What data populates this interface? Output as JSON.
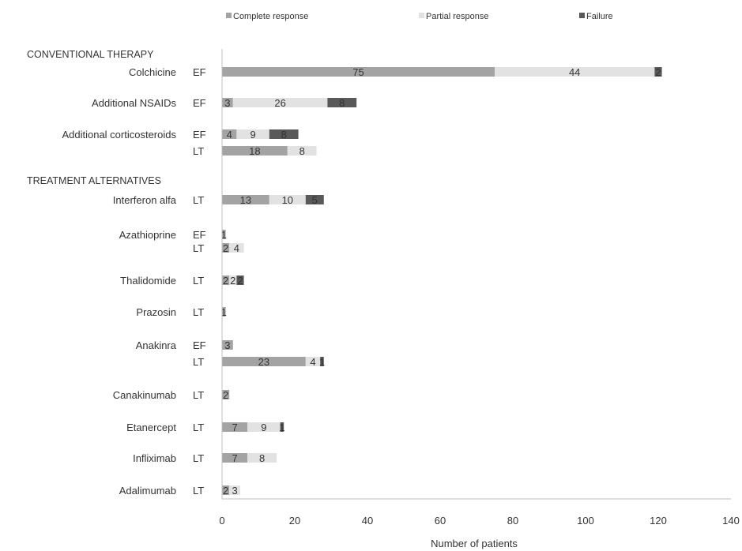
{
  "chart_data": {
    "type": "bar",
    "orientation": "horizontal",
    "stacked": true,
    "xlabel": "Number of patients",
    "xlim": [
      0,
      140
    ],
    "xticks": [
      0,
      20,
      40,
      60,
      80,
      100,
      120,
      140
    ],
    "grid": false,
    "legend_position": "top",
    "series": [
      {
        "name": "Complete response",
        "color": "#a3a3a3"
      },
      {
        "name": "Partial response",
        "color": "#e2e2e2"
      },
      {
        "name": "Failure",
        "color": "#595959"
      }
    ],
    "sections": [
      "CONVENTIONAL THERAPY",
      "TREATMENT ALTERNATIVES"
    ],
    "rows": [
      {
        "section": 0,
        "label": "Colchicine",
        "sub": "EF",
        "values": [
          75,
          44,
          2
        ],
        "value_labels": [
          "75",
          "44",
          "2"
        ]
      },
      {
        "section": 0,
        "label": "Additional NSAIDs",
        "sub": "EF",
        "values": [
          3,
          26,
          8
        ],
        "value_labels": [
          "3",
          "26",
          "8"
        ]
      },
      {
        "section": 0,
        "label": "Additional corticosteroids",
        "sub": "EF",
        "values": [
          4,
          9,
          8
        ],
        "value_labels": [
          "4",
          "9",
          "8"
        ]
      },
      {
        "section": 0,
        "label": "",
        "sub": "LT",
        "values": [
          18,
          8,
          0
        ],
        "value_labels": [
          "18",
          "8",
          ""
        ]
      },
      {
        "section": 1,
        "label": "Interferon alfa",
        "sub": "LT",
        "values": [
          13,
          10,
          5
        ],
        "value_labels": [
          "13",
          "10",
          "5"
        ]
      },
      {
        "section": 1,
        "label": "Azathioprine",
        "sub": "EF",
        "values": [
          1,
          0,
          0
        ],
        "value_labels": [
          "1",
          "",
          ""
        ]
      },
      {
        "section": 1,
        "label": "",
        "sub": "LT",
        "values": [
          2,
          4,
          0
        ],
        "value_labels": [
          "2",
          "4",
          ""
        ]
      },
      {
        "section": 1,
        "label": "Thalidomide",
        "sub": "LT",
        "values": [
          2,
          2,
          2
        ],
        "value_labels": [
          "2",
          "2",
          "2"
        ]
      },
      {
        "section": 1,
        "label": "Prazosin",
        "sub": "LT",
        "values": [
          1,
          0,
          0
        ],
        "value_labels": [
          "1",
          "",
          ""
        ]
      },
      {
        "section": 1,
        "label": "Anakinra",
        "sub": "EF",
        "values": [
          3,
          0,
          0
        ],
        "value_labels": [
          "3",
          "",
          ""
        ]
      },
      {
        "section": 1,
        "label": "",
        "sub": "LT",
        "values": [
          23,
          4,
          1
        ],
        "value_labels": [
          "23",
          "4",
          "1"
        ]
      },
      {
        "section": 1,
        "label": "Canakinumab",
        "sub": "LT",
        "values": [
          2,
          0,
          0
        ],
        "value_labels": [
          "2",
          "",
          ""
        ]
      },
      {
        "section": 1,
        "label": "Etanercept",
        "sub": "LT",
        "values": [
          7,
          9,
          1
        ],
        "value_labels": [
          "7",
          "9",
          "1"
        ]
      },
      {
        "section": 1,
        "label": "Infliximab",
        "sub": "LT",
        "values": [
          7,
          8,
          0
        ],
        "value_labels": [
          "7",
          "8",
          ""
        ]
      },
      {
        "section": 1,
        "label": "Adalimumab",
        "sub": "LT",
        "values": [
          2,
          3,
          0
        ],
        "value_labels": [
          "2",
          "3",
          ""
        ]
      }
    ]
  }
}
